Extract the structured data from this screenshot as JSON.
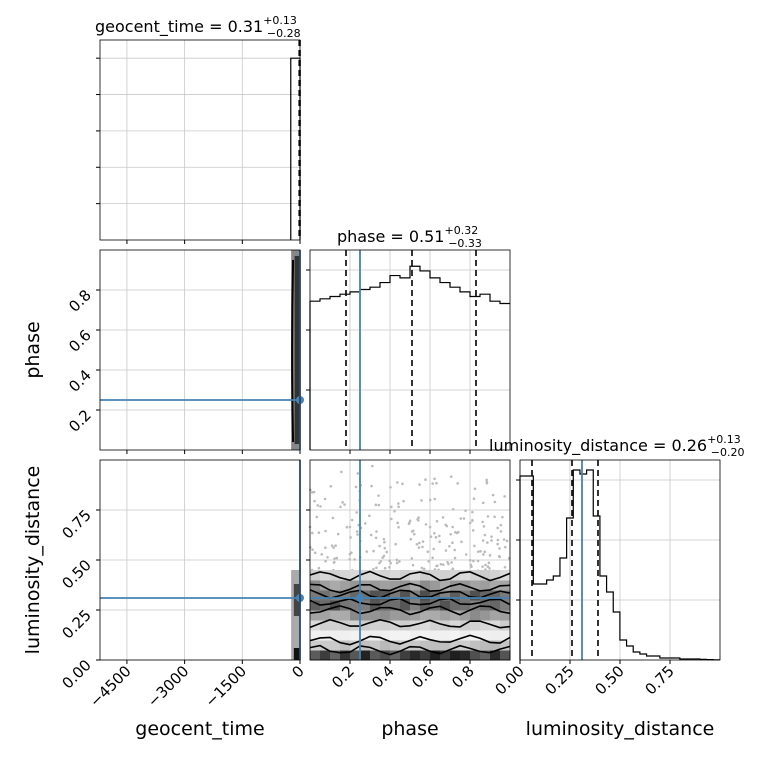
{
  "figure": {
    "titles": {
      "geocent": {
        "base": "geocent_time = 0.31",
        "sup": "+0.13",
        "sub": "−0.28"
      },
      "phase": {
        "base": "phase = 0.51",
        "sup": "+0.32",
        "sub": "−0.33"
      },
      "lumdist": {
        "base": "luminosity_distance = 0.26",
        "sup": "+0.13",
        "sub": "−0.20"
      }
    },
    "xlabels": {
      "geocent": "geocent_time",
      "phase": "phase",
      "lumdist": "luminosity_distance"
    },
    "ylabels": {
      "phase": "phase",
      "lumdist": "luminosity_distance"
    },
    "colors": {
      "truth": "#4682b4",
      "hist": "#000000",
      "grid": "#c8c8c8"
    }
  },
  "chart_data": [
    {
      "type": "histogram",
      "panel": "geocent_time marginal",
      "title": "geocent_time = 0.31 +0.13 -0.28",
      "x_range": [
        -5200,
        0
      ],
      "x_ticks": [
        -4500,
        -3000,
        -1500,
        0
      ],
      "notes": "all mass concentrated in the last bin near 0",
      "bins": [
        {
          "x0": -240,
          "x1": 0,
          "density": 1.0
        }
      ],
      "quantile_lines": [
        -20,
        0.31
      ],
      "grid": true
    },
    {
      "type": "histogram",
      "panel": "phase marginal",
      "title": "phase = 0.51 +0.32 -0.33",
      "x_range": [
        0.0,
        1.0
      ],
      "x_ticks": [
        0.2,
        0.4,
        0.6,
        0.8
      ],
      "bin_width": 0.05,
      "values": [
        0.64,
        0.65,
        0.66,
        0.67,
        0.68,
        0.69,
        0.7,
        0.72,
        0.75,
        0.74,
        0.79,
        0.77,
        0.74,
        0.72,
        0.7,
        0.68,
        0.66,
        0.67,
        0.64,
        0.63
      ],
      "quantiles": [
        0.18,
        0.51,
        0.83
      ],
      "truth": 0.25,
      "grid": true
    },
    {
      "type": "histogram",
      "panel": "luminosity_distance marginal",
      "title": "luminosity_distance = 0.26 +0.13 -0.20",
      "x_range": [
        0.0,
        1.0
      ],
      "x_ticks": [
        0.0,
        0.25,
        0.5,
        0.75
      ],
      "bin_width": 0.0333,
      "values": [
        0.92,
        0.92,
        0.38,
        0.38,
        0.4,
        0.42,
        0.51,
        0.71,
        0.95,
        0.93,
        0.95,
        0.72,
        0.42,
        0.34,
        0.24,
        0.1,
        0.07,
        0.04,
        0.03,
        0.02,
        0.02,
        0.01,
        0.01,
        0.01,
        0.005,
        0.005,
        0.005,
        0.003,
        0.002,
        0.001
      ],
      "quantiles": [
        0.06,
        0.26,
        0.39
      ],
      "truth": 0.31,
      "grid": true
    },
    {
      "type": "scatter",
      "panel": "phase vs geocent_time",
      "x_range": [
        -5200,
        0
      ],
      "y_range": [
        0.0,
        1.0
      ],
      "x_ticks": [
        -4500,
        -3000,
        -1500,
        0
      ],
      "y_ticks": [
        0.2,
        0.4,
        0.6,
        0.8
      ],
      "ylabel": "phase",
      "notes": "samples concentrated in narrow column at geocent_time approx 0",
      "truth": {
        "x": 0,
        "y": 0.25
      }
    },
    {
      "type": "scatter",
      "panel": "luminosity_distance vs geocent_time",
      "x_range": [
        -5200,
        0
      ],
      "y_range": [
        0.0,
        1.0
      ],
      "x_ticks": [
        -4500,
        -3000,
        -1500,
        0
      ],
      "y_ticks": [
        0.0,
        0.25,
        0.5,
        0.75
      ],
      "xlabel": "geocent_time",
      "ylabel": "luminosity_distance",
      "truth": {
        "x": 0,
        "y": 0.31
      }
    },
    {
      "type": "heatmap",
      "panel": "luminosity_distance vs phase",
      "x_range": [
        0.0,
        1.0
      ],
      "y_range": [
        0.0,
        1.0
      ],
      "x_ticks": [
        0.2,
        0.4,
        0.6,
        0.8
      ],
      "xlabel": "phase",
      "notes": "2D density with contours; mass concentrated at luminosity_distance 0.0-0.4; sparse points above",
      "truth": {
        "x": 0.25,
        "y": 0.31
      }
    }
  ]
}
